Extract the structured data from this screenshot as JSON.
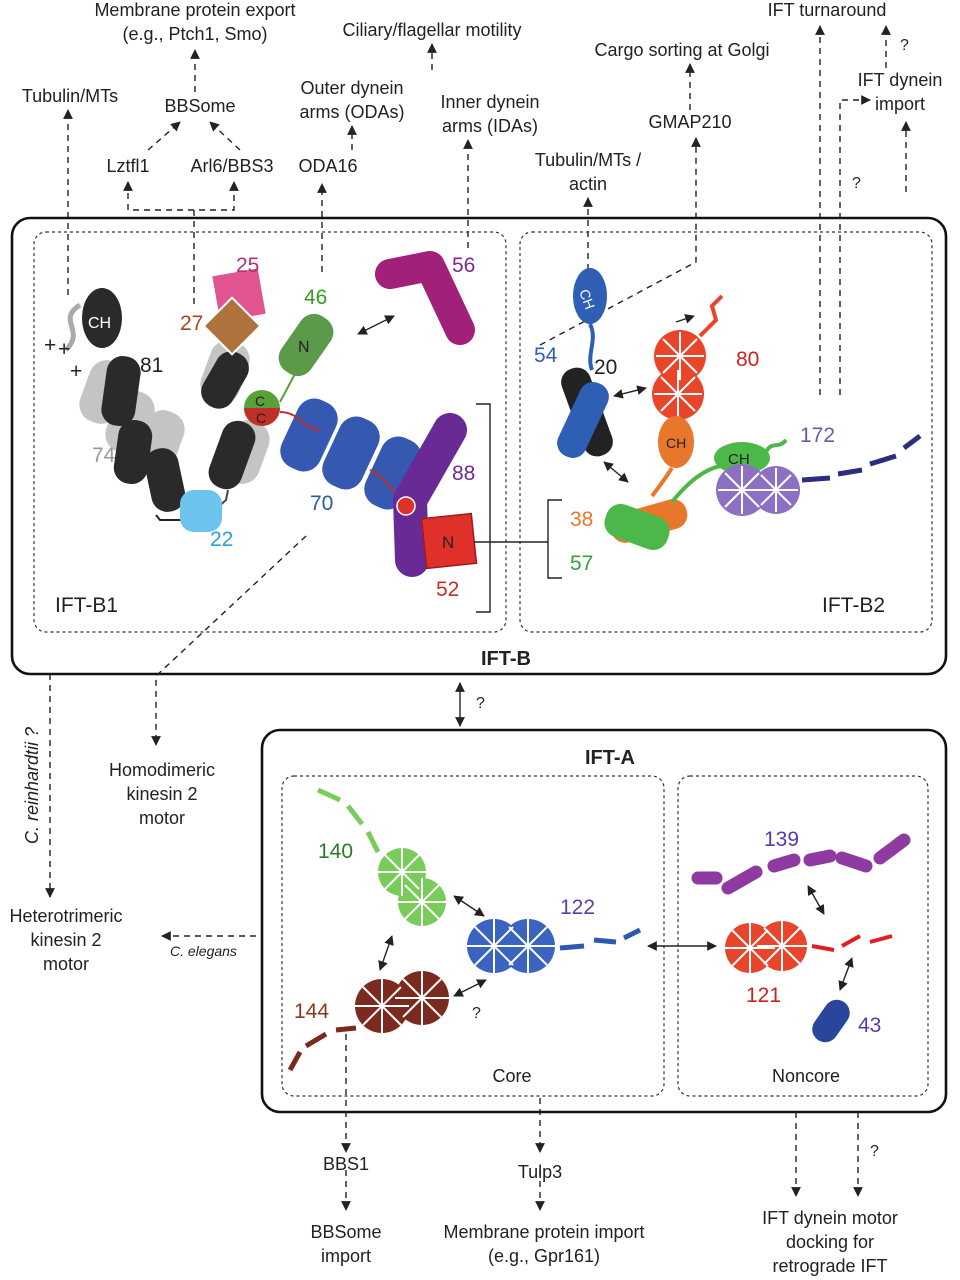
{
  "labels": {
    "membrane_export": "Membrane protein export",
    "membrane_export_eg": "(e.g., Ptch1, Smo)",
    "ciliary_motility": "Ciliary/flagellar motility",
    "ift_turnaround": "IFT turnaround",
    "cargo_golgi": "Cargo sorting at Golgi",
    "tubulin_mts": "Tubulin/MTs",
    "bbsome": "BBSome",
    "outer_dynein_1": "Outer dynein",
    "outer_dynein_2": "arms (ODAs)",
    "inner_dynein_1": "Inner dynein",
    "inner_dynein_2": "arms (IDAs)",
    "ift_dynein_import_1": "IFT dynein",
    "ift_dynein_import_2": "import",
    "gmap210": "GMAP210",
    "lztfl1": "Lztfl1",
    "arl6": "Arl6/BBS3",
    "oda16": "ODA16",
    "tubulin_actin_1": "Tubulin/MTs /",
    "tubulin_actin_2": "actin",
    "q": "?",
    "c_reinhardtii": "C. reinhardtii ?",
    "c_elegans": "C. elegans",
    "homodimeric_1": "Homodimeric",
    "homodimeric_2": "kinesin 2",
    "homodimeric_3": "motor",
    "heterotrimeric_1": "Heterotrimeric",
    "heterotrimeric_2": "kinesin 2",
    "heterotrimeric_3": "motor",
    "bbs1": "BBS1",
    "bbsome_import_1": "BBSome",
    "bbsome_import_2": "import",
    "tulp3": "Tulp3",
    "membrane_import_1": "Membrane protein import",
    "membrane_import_2": "(e.g., Gpr161)",
    "dynein_docking_1": "IFT dynein motor",
    "dynein_docking_2": "docking for",
    "dynein_docking_3": "retrograde IFT"
  },
  "complexes": {
    "ift_b": "IFT-B",
    "ift_b1": "IFT-B1",
    "ift_b2": "IFT-B2",
    "ift_a": "IFT-A",
    "core": "Core",
    "noncore": "Noncore"
  },
  "proteins": {
    "p25": "25",
    "p27": "27",
    "p46": "46",
    "p56": "56",
    "p81": "81",
    "p74": "74",
    "p70": "70",
    "p88": "88",
    "p22": "22",
    "p52": "52",
    "p54": "54",
    "p20": "20",
    "p80": "80",
    "p172": "172",
    "p38": "38",
    "p57": "57",
    "p140": "140",
    "p122": "122",
    "p144": "144",
    "p139": "139",
    "p121": "121",
    "p43": "43"
  },
  "domains": {
    "ch": "CH",
    "n": "N",
    "c": "C",
    "plus": "+"
  },
  "colors": {
    "p25": "#e0558f",
    "p27": "#b0723c",
    "p46": "#5aa03a",
    "p56": "#a0207a",
    "p81": "#2a2a2a",
    "p74": "#b8b8b8",
    "p70": "#3558b0",
    "p88": "#6a2a95",
    "p22": "#6cc4ee",
    "p52": "#e0302a",
    "p54": "#2e5fb5",
    "p20": "#222222",
    "p80": "#e8452a",
    "p172": "#8d70c4",
    "p38": "#e8772c",
    "p57": "#4db84a",
    "p140": "#7acc5a",
    "p122": "#3a64c0",
    "p144": "#7a2a1e",
    "p139": "#8e3aa0",
    "p121": "#e8452a",
    "p43": "#28479c"
  }
}
